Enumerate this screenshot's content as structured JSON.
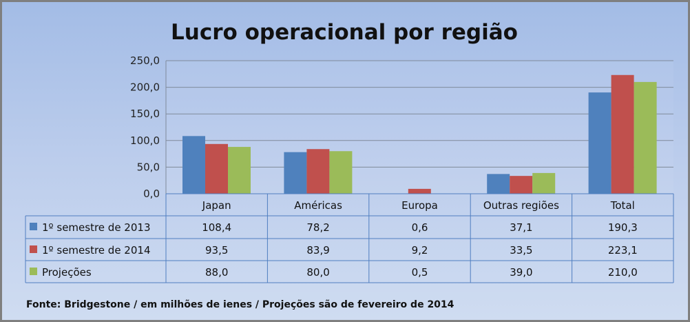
{
  "chart_data": {
    "type": "bar",
    "title": "Lucro operacional por região",
    "categories": [
      "Japan",
      "Américas",
      "Europa",
      "Outras regiões",
      "Total"
    ],
    "series": [
      {
        "name": "1º semestre de 2013",
        "color": "#4f81bd",
        "values": [
          108.4,
          78.2,
          0.6,
          37.1,
          190.3
        ],
        "labels": [
          "108,4",
          "78,2",
          "0,6",
          "37,1",
          "190,3"
        ]
      },
      {
        "name": "1º semestre de 2014",
        "color": "#c0504d",
        "values": [
          93.5,
          83.9,
          9.2,
          33.5,
          223.1
        ],
        "labels": [
          "93,5",
          "83,9",
          "9,2",
          "33,5",
          "223,1"
        ]
      },
      {
        "name": "Projeções",
        "color": "#9bbb59",
        "values": [
          88.0,
          80.0,
          0.5,
          39.0,
          210.0
        ],
        "labels": [
          "88,0",
          "80,0",
          "0,5",
          "39,0",
          "210,0"
        ]
      }
    ],
    "yticks": [
      "0,0",
      "50,0",
      "100,0",
      "150,0",
      "200,0",
      "250,0"
    ],
    "ylim": [
      0,
      250
    ],
    "grid": true,
    "legend": "data-table",
    "footer": "Fonte: Bridgestone / em milhões de ienes / Projeções são de fevereiro de 2014"
  }
}
